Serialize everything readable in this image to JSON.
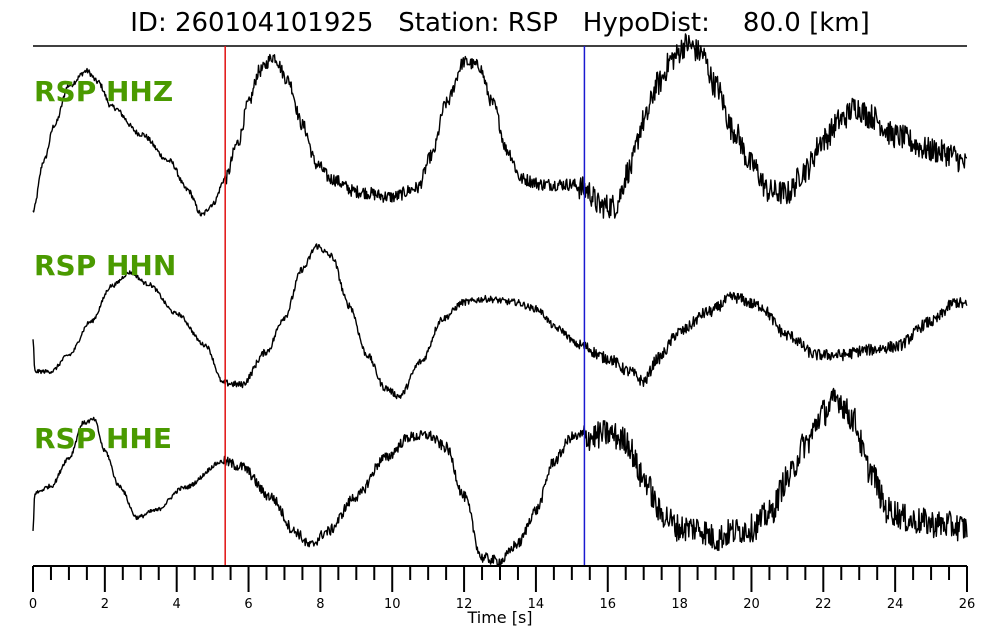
{
  "header": {
    "title": "ID: 260104101925   Station: RSP   HypoDist:    80.0 [km]"
  },
  "chart_data": {
    "type": "line",
    "xlabel": "Time [s]",
    "xlim": [
      0,
      26
    ],
    "major_ticks": [
      0,
      2,
      4,
      6,
      8,
      10,
      12,
      14,
      16,
      18,
      20,
      22,
      24,
      26
    ],
    "minor_tick_step": 0.5,
    "picks": [
      {
        "time": 5.35,
        "color": "#e01010"
      },
      {
        "time": 15.35,
        "color": "#1a1ad0"
      }
    ],
    "label_color": "#4a9a00",
    "series": [
      {
        "name": "RSP HHZ",
        "color": "#000000",
        "noise": [
          [
            0,
            5.3,
            0.015
          ],
          [
            5.3,
            15.2,
            0.035
          ],
          [
            15.2,
            26,
            0.07
          ]
        ],
        "shape": [
          [
            0,
            0.02
          ],
          [
            0.3,
            0.3
          ],
          [
            0.6,
            0.5
          ],
          [
            1.0,
            0.72
          ],
          [
            1.5,
            0.8
          ],
          [
            1.8,
            0.74
          ],
          [
            2.2,
            0.6
          ],
          [
            3.0,
            0.45
          ],
          [
            3.8,
            0.3
          ],
          [
            4.3,
            0.14
          ],
          [
            4.7,
            0.0
          ],
          [
            5.0,
            0.06
          ],
          [
            5.35,
            0.2
          ],
          [
            5.7,
            0.4
          ],
          [
            6.0,
            0.62
          ],
          [
            6.3,
            0.8
          ],
          [
            6.7,
            0.88
          ],
          [
            7.1,
            0.75
          ],
          [
            7.5,
            0.5
          ],
          [
            7.9,
            0.28
          ],
          [
            8.3,
            0.2
          ],
          [
            9.0,
            0.13
          ],
          [
            10.0,
            0.1
          ],
          [
            10.7,
            0.15
          ],
          [
            11.1,
            0.33
          ],
          [
            11.5,
            0.62
          ],
          [
            12.0,
            0.85
          ],
          [
            12.4,
            0.83
          ],
          [
            12.8,
            0.62
          ],
          [
            13.2,
            0.36
          ],
          [
            13.6,
            0.2
          ],
          [
            14.2,
            0.17
          ],
          [
            15.0,
            0.17
          ],
          [
            15.4,
            0.14
          ],
          [
            15.8,
            0.05
          ],
          [
            16.2,
            0.05
          ],
          [
            16.6,
            0.25
          ],
          [
            17.0,
            0.52
          ],
          [
            17.4,
            0.73
          ],
          [
            17.8,
            0.87
          ],
          [
            18.2,
            0.95
          ],
          [
            18.6,
            0.9
          ],
          [
            19.0,
            0.72
          ],
          [
            19.5,
            0.47
          ],
          [
            20.0,
            0.28
          ],
          [
            20.5,
            0.13
          ],
          [
            21.0,
            0.12
          ],
          [
            21.5,
            0.25
          ],
          [
            22.0,
            0.42
          ],
          [
            22.5,
            0.53
          ],
          [
            22.9,
            0.6
          ],
          [
            23.3,
            0.55
          ],
          [
            24.0,
            0.44
          ],
          [
            25.0,
            0.36
          ],
          [
            25.5,
            0.34
          ],
          [
            26,
            0.28
          ]
        ]
      },
      {
        "name": "RSP HHN",
        "color": "#000000",
        "noise": [
          [
            0,
            5.3,
            0.012
          ],
          [
            5.3,
            15.2,
            0.02
          ],
          [
            15.2,
            26,
            0.035
          ]
        ],
        "shape": [
          [
            0,
            0.3
          ],
          [
            0.05,
            0.1
          ],
          [
            0.5,
            0.1
          ],
          [
            1.0,
            0.2
          ],
          [
            1.6,
            0.4
          ],
          [
            2.2,
            0.62
          ],
          [
            2.7,
            0.7
          ],
          [
            3.2,
            0.63
          ],
          [
            4.0,
            0.45
          ],
          [
            4.8,
            0.26
          ],
          [
            5.3,
            0.03
          ],
          [
            5.8,
            0.02
          ],
          [
            6.5,
            0.22
          ],
          [
            7.0,
            0.43
          ],
          [
            7.5,
            0.72
          ],
          [
            7.9,
            0.86
          ],
          [
            8.3,
            0.8
          ],
          [
            8.8,
            0.5
          ],
          [
            9.3,
            0.2
          ],
          [
            9.8,
            0.0
          ],
          [
            10.2,
            -0.05
          ],
          [
            10.8,
            0.16
          ],
          [
            11.4,
            0.42
          ],
          [
            12.0,
            0.52
          ],
          [
            12.6,
            0.54
          ],
          [
            13.4,
            0.52
          ],
          [
            14.0,
            0.48
          ],
          [
            14.6,
            0.36
          ],
          [
            15.2,
            0.26
          ],
          [
            16.0,
            0.18
          ],
          [
            16.6,
            0.1
          ],
          [
            17.0,
            0.04
          ],
          [
            17.4,
            0.18
          ],
          [
            18.0,
            0.34
          ],
          [
            18.8,
            0.46
          ],
          [
            19.5,
            0.55
          ],
          [
            20.2,
            0.5
          ],
          [
            21.0,
            0.32
          ],
          [
            21.8,
            0.2
          ],
          [
            22.5,
            0.2
          ],
          [
            23.2,
            0.23
          ],
          [
            24.0,
            0.25
          ],
          [
            25.0,
            0.4
          ],
          [
            25.7,
            0.52
          ],
          [
            26,
            0.5
          ]
        ]
      },
      {
        "name": "RSP HHE",
        "color": "#000000",
        "noise": [
          [
            0,
            5.3,
            0.012
          ],
          [
            5.3,
            15.2,
            0.03
          ],
          [
            15.2,
            26,
            0.08
          ]
        ],
        "shape": [
          [
            0,
            0.1
          ],
          [
            0.05,
            0.32
          ],
          [
            0.5,
            0.36
          ],
          [
            1.0,
            0.52
          ],
          [
            1.4,
            0.72
          ],
          [
            1.7,
            0.74
          ],
          [
            2.0,
            0.56
          ],
          [
            2.4,
            0.36
          ],
          [
            2.9,
            0.18
          ],
          [
            3.4,
            0.22
          ],
          [
            4.2,
            0.35
          ],
          [
            5.3,
            0.5
          ],
          [
            5.8,
            0.47
          ],
          [
            6.6,
            0.3
          ],
          [
            7.3,
            0.1
          ],
          [
            7.7,
            0.02
          ],
          [
            8.2,
            0.1
          ],
          [
            9.0,
            0.3
          ],
          [
            9.8,
            0.52
          ],
          [
            10.5,
            0.64
          ],
          [
            11.0,
            0.65
          ],
          [
            11.5,
            0.58
          ],
          [
            12.0,
            0.3
          ],
          [
            12.5,
            -0.05
          ],
          [
            13.0,
            -0.07
          ],
          [
            13.5,
            0.03
          ],
          [
            14.0,
            0.22
          ],
          [
            14.5,
            0.5
          ],
          [
            15.0,
            0.64
          ],
          [
            15.5,
            0.64
          ],
          [
            16.0,
            0.66
          ],
          [
            16.5,
            0.62
          ],
          [
            17.0,
            0.4
          ],
          [
            17.5,
            0.2
          ],
          [
            18.0,
            0.12
          ],
          [
            18.5,
            0.12
          ],
          [
            19.0,
            0.06
          ],
          [
            19.5,
            0.1
          ],
          [
            20.0,
            0.12
          ],
          [
            20.5,
            0.2
          ],
          [
            21.0,
            0.4
          ],
          [
            21.5,
            0.6
          ],
          [
            22.0,
            0.78
          ],
          [
            22.4,
            0.86
          ],
          [
            22.8,
            0.75
          ],
          [
            23.3,
            0.45
          ],
          [
            23.8,
            0.22
          ],
          [
            24.5,
            0.16
          ],
          [
            25.3,
            0.14
          ],
          [
            26,
            0.12
          ]
        ]
      }
    ]
  }
}
